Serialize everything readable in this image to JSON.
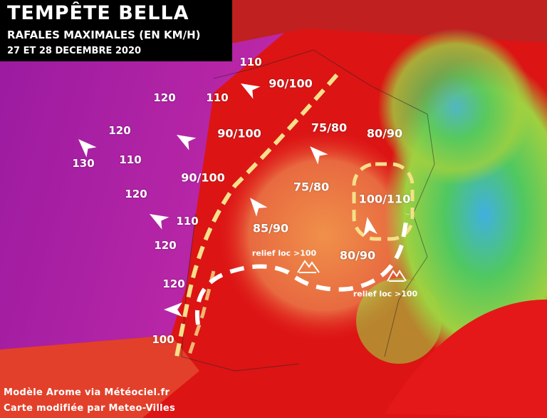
{
  "title": {
    "line1": "TEMPÊTE BELLA",
    "line2": "RAFALES MAXIMALES (EN KM/H)",
    "line3": "27 ET 28 DECEMBRE 2020"
  },
  "labels": [
    "110",
    "90/100",
    "120",
    "110",
    "120",
    "90/100",
    "75/80",
    "80/90",
    "130",
    "110",
    "90/100",
    "75/80",
    "100/110",
    "120",
    "110",
    "85/90",
    "120",
    "80/90",
    "120",
    "100"
  ],
  "relief_labels": [
    "relief loc >100",
    "relief loc >100"
  ],
  "credits": {
    "line1": "Modèle Arome via Météociel.fr",
    "line2": "Carte modifiée par Meteo-Villes"
  },
  "colors": {
    "sea_gusts": "#a020a8",
    "land_gusts": "#e01212",
    "moderate": "#f08a3a",
    "low": "#6ad04a",
    "annotation_yellow": "#f5e08a",
    "annotation_white": "#ffffff"
  },
  "icons": [
    "wind-direction-arrow",
    "mountain-icon"
  ]
}
